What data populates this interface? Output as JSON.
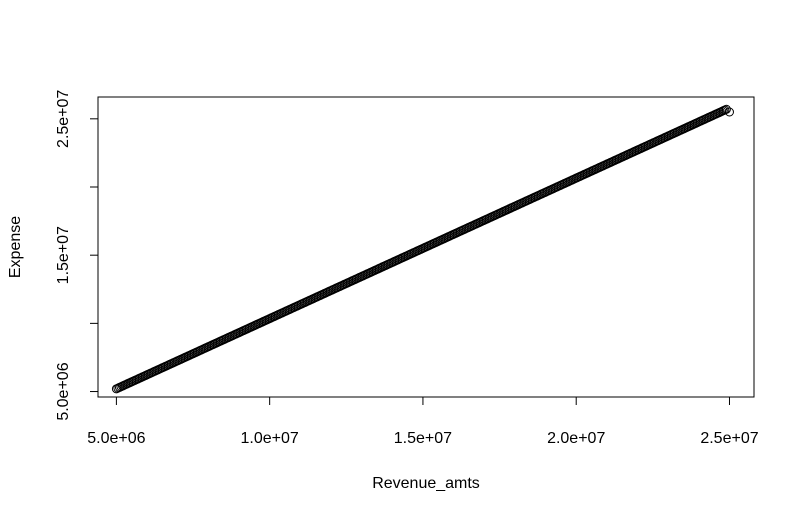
{
  "chart_data": {
    "type": "scatter",
    "title": "",
    "xlabel": "Revenue_amts",
    "ylabel": "Expense",
    "xlim": [
      4400000,
      25800000
    ],
    "ylim": [
      4600000,
      26600000
    ],
    "x_ticks": [
      {
        "value": 5000000,
        "label": "5.0e+06"
      },
      {
        "value": 10000000,
        "label": "1.0e+07"
      },
      {
        "value": 15000000,
        "label": "1.5e+07"
      },
      {
        "value": 20000000,
        "label": "2.0e+07"
      },
      {
        "value": 25000000,
        "label": "2.5e+07"
      }
    ],
    "y_ticks": [
      {
        "value": 5000000,
        "label": "5.0e+06"
      },
      {
        "value": 10000000,
        "label": ""
      },
      {
        "value": 15000000,
        "label": "1.5e+07"
      },
      {
        "value": 20000000,
        "label": ""
      },
      {
        "value": 25000000,
        "label": "2.5e+07"
      }
    ],
    "series": [
      {
        "marker": "open-circle",
        "color": "#000000",
        "points_from": [
          5000000,
          5200000
        ],
        "points_to": [
          24900000,
          25700000
        ],
        "point_count": 400,
        "outliers": [
          [
            25000000,
            25500000
          ]
        ]
      }
    ],
    "grid": false,
    "legend": "none"
  }
}
